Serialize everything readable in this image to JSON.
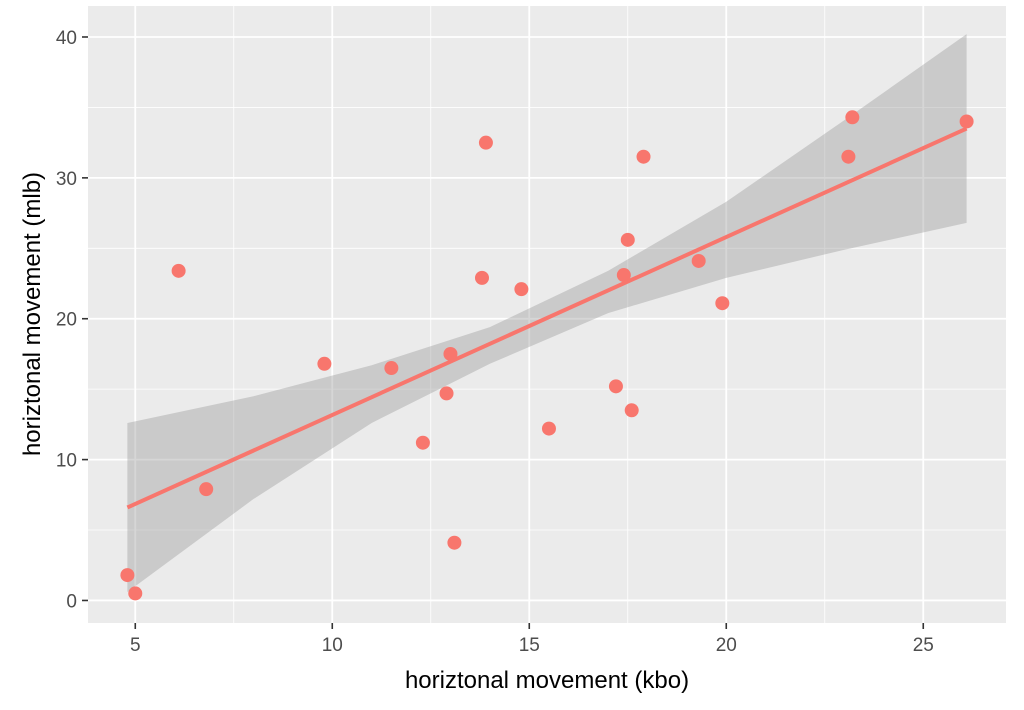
{
  "chart_data": {
    "type": "scatter",
    "title": "",
    "xlabel": "horiztonal movement (kbo)",
    "ylabel": "horiztonal movement (mlb)",
    "xlim": [
      3.8,
      27.1
    ],
    "ylim": [
      -1.6,
      42.2
    ],
    "x_ticks": [
      5,
      10,
      15,
      20,
      25
    ],
    "y_ticks": [
      0,
      10,
      20,
      30,
      40
    ],
    "grid": true,
    "legend": "none",
    "colors": {
      "panel": "#ebebeb",
      "grid": "#ffffff",
      "points": "#f8766d",
      "fit_line": "#f8766d",
      "ribbon": "#999999"
    },
    "points": [
      {
        "x": 4.8,
        "y": 1.8
      },
      {
        "x": 5.0,
        "y": 0.5
      },
      {
        "x": 6.1,
        "y": 23.4
      },
      {
        "x": 6.8,
        "y": 7.9
      },
      {
        "x": 9.8,
        "y": 16.8
      },
      {
        "x": 11.5,
        "y": 16.5
      },
      {
        "x": 12.3,
        "y": 11.2
      },
      {
        "x": 12.9,
        "y": 14.7
      },
      {
        "x": 13.0,
        "y": 17.5
      },
      {
        "x": 13.1,
        "y": 4.1
      },
      {
        "x": 13.8,
        "y": 22.9
      },
      {
        "x": 13.9,
        "y": 32.5
      },
      {
        "x": 14.8,
        "y": 22.1
      },
      {
        "x": 15.5,
        "y": 12.2
      },
      {
        "x": 17.2,
        "y": 15.2
      },
      {
        "x": 17.4,
        "y": 23.1
      },
      {
        "x": 17.5,
        "y": 25.6
      },
      {
        "x": 17.6,
        "y": 13.5
      },
      {
        "x": 17.9,
        "y": 31.5
      },
      {
        "x": 19.3,
        "y": 24.1
      },
      {
        "x": 19.9,
        "y": 21.1
      },
      {
        "x": 23.1,
        "y": 31.5
      },
      {
        "x": 23.2,
        "y": 34.3
      },
      {
        "x": 26.1,
        "y": 34.0
      }
    ],
    "fit": {
      "x_start": 4.8,
      "y_start": 6.6,
      "x_end": 26.1,
      "y_end": 33.5
    },
    "confidence_band": {
      "x": [
        4.8,
        8,
        11,
        14,
        17,
        20,
        23,
        26.1
      ],
      "lower": [
        0.6,
        7.2,
        12.6,
        16.8,
        20.4,
        22.9,
        24.9,
        26.8
      ],
      "upper": [
        12.6,
        14.5,
        16.7,
        19.4,
        23.4,
        28.3,
        34.1,
        40.2
      ]
    }
  }
}
